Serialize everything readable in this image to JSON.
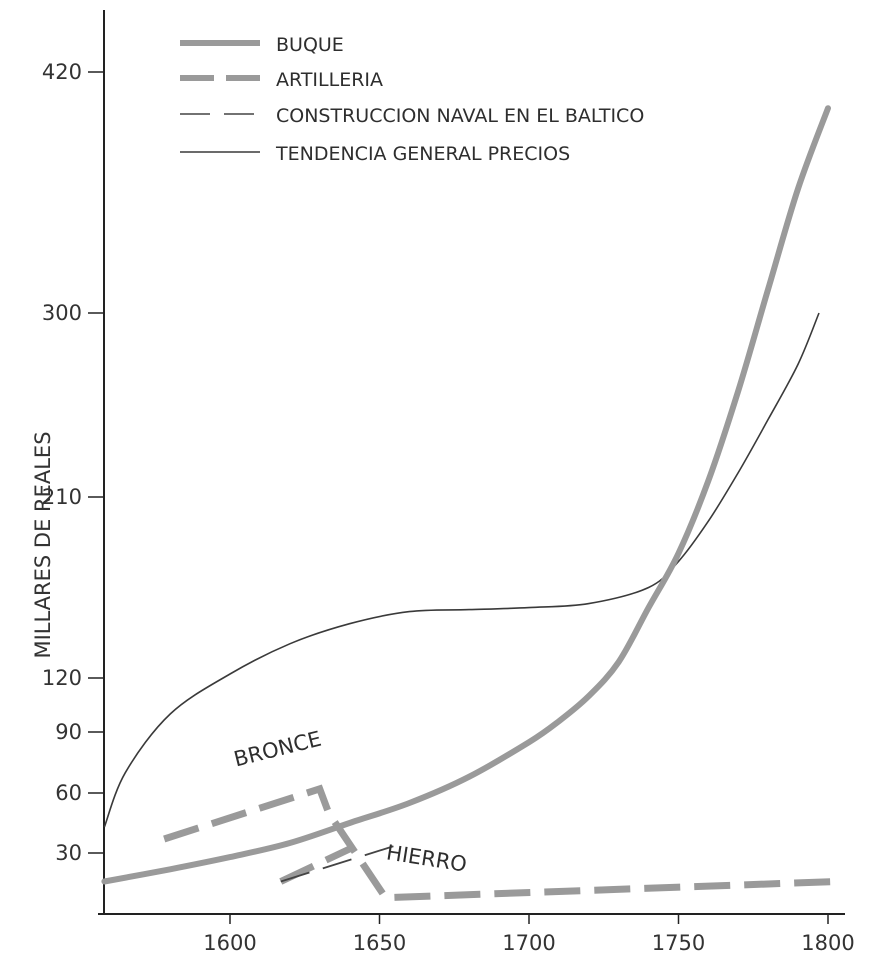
{
  "chart_data": {
    "type": "line",
    "title": "",
    "xlabel": "",
    "ylabel": "MILLARES DE REALES",
    "xlim": [
      1558,
      1818
    ],
    "ylim": [
      0,
      440
    ],
    "x_ticks": [
      1600,
      1650,
      1700,
      1750,
      1800
    ],
    "y_ticks": [
      30,
      60,
      90,
      120,
      210,
      300,
      420
    ],
    "grid": false,
    "legend_position": "top-left",
    "series": [
      {
        "name": "BUQUE",
        "style": "thick-gray",
        "color": "#9a9a9a",
        "x": [
          1558,
          1580,
          1600,
          1620,
          1640,
          1660,
          1680,
          1700,
          1710,
          1720,
          1730,
          1740,
          1750,
          1760,
          1770,
          1780,
          1790,
          1800
        ],
        "y": [
          16,
          22,
          28,
          35,
          45,
          55,
          68,
          85,
          96,
          110,
          128,
          155,
          182,
          218,
          262,
          312,
          362,
          402
        ]
      },
      {
        "name": "ARTILLERIA",
        "style": "thick-dashed-gray",
        "color": "#9a9a9a",
        "segments": [
          {
            "x": [
              1578,
              1630,
              1633,
              1652,
              1803
            ],
            "y": [
              37,
              62,
              50,
              8,
              16
            ]
          },
          {
            "x": [
              1617,
              1640
            ],
            "y": [
              16,
              32
            ]
          }
        ]
      },
      {
        "name": "CONSTRUCCION NAVAL EN EL BALTICO",
        "style": "thin-dashed",
        "color": "#444444",
        "x": [
          1617,
          1656
        ],
        "y": [
          16,
          34
        ]
      },
      {
        "name": "TENDENCIA GENERAL PRECIOS",
        "style": "thin-solid",
        "color": "#3a3a3a",
        "x": [
          1558,
          1565,
          1580,
          1600,
          1620,
          1640,
          1660,
          1680,
          1700,
          1720,
          1740,
          1750,
          1760,
          1770,
          1780,
          1790,
          1797
        ],
        "y": [
          43,
          70,
          100,
          122,
          137,
          147,
          153,
          154,
          155,
          157,
          165,
          178,
          198,
          222,
          248,
          275,
          300
        ]
      }
    ],
    "annotations": [
      {
        "text": "BRONCE",
        "x": 1602,
        "y": 73
      },
      {
        "text": "HIERRO",
        "x": 1652,
        "y": 27
      }
    ]
  }
}
